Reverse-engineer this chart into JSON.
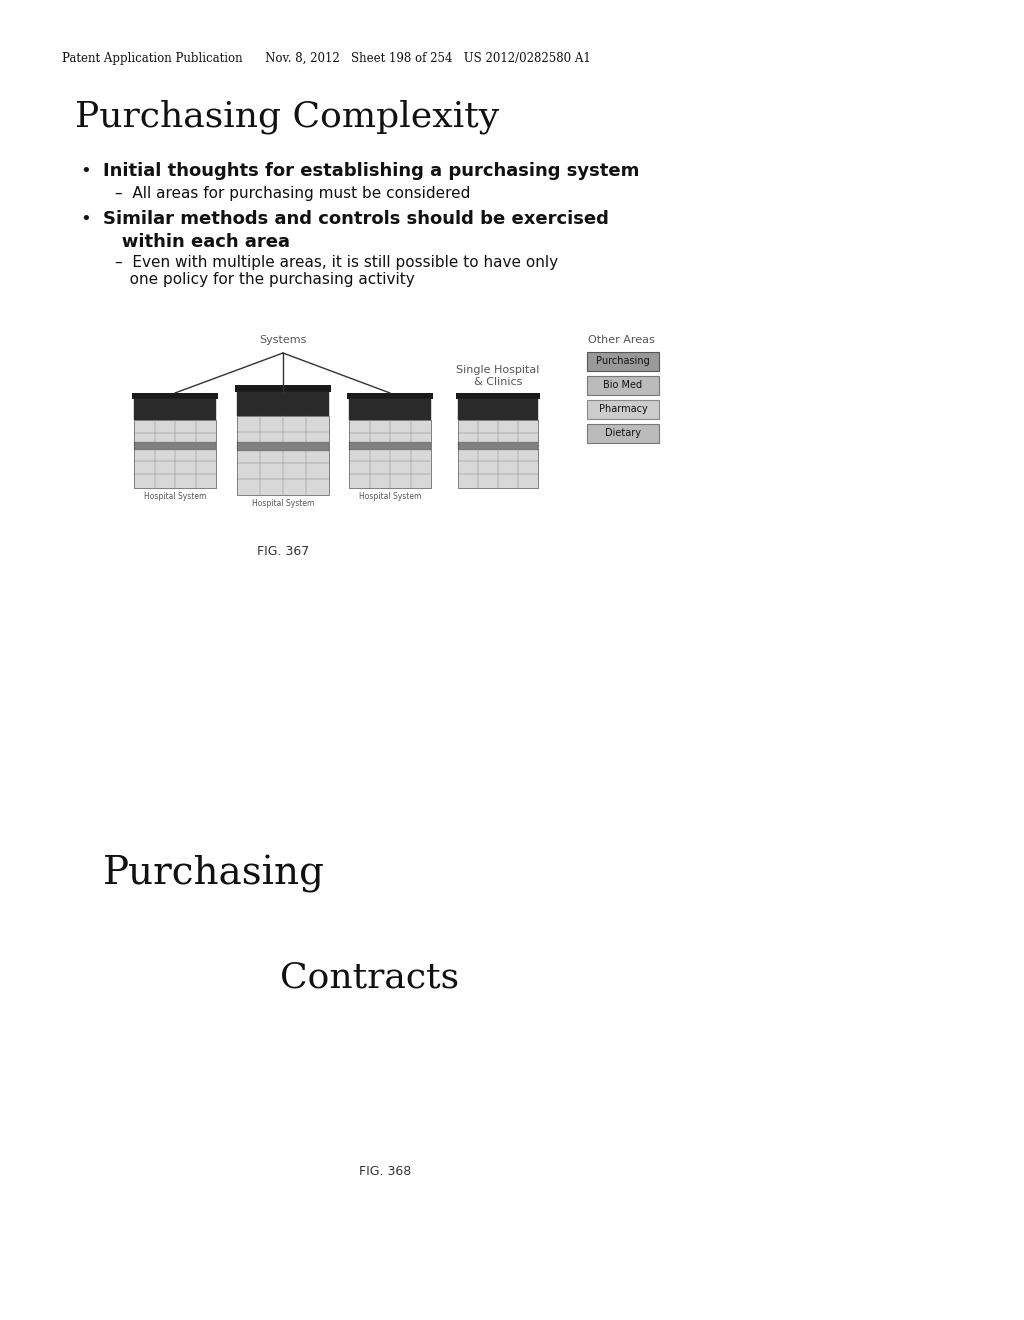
{
  "background_color": "#ffffff",
  "header_text": "Patent Application Publication      Nov. 8, 2012   Sheet 198 of 254   US 2012/0282580 A1",
  "title1": "Purchasing Complexity",
  "bullet1_prefix": "•",
  "bullet1_text": "Initial thoughts for establishing a purchasing system",
  "sub_bullet1": "–  All areas for purchasing must be considered",
  "bullet2_prefix": "•",
  "bullet2_text": "Similar methods and controls should be exercised\n   within each area",
  "sub_bullet2_line1": "–  Even with multiple areas, it is still possible to have only",
  "sub_bullet2_line2": "   one policy for the purchasing activity",
  "fig1_label": "FIG. 367",
  "systems_label": "Systems",
  "single_hosp_label": "Single Hospital\n& Clinics",
  "other_areas_label": "Other Areas",
  "other_areas_boxes": [
    "Purchasing",
    "Bio Med",
    "Pharmacy",
    "Dietary"
  ],
  "hosp_system_label": "Hospital System",
  "title2": "Purchasing",
  "title3": "Contracts",
  "fig2_label": "FIG. 368",
  "header_fontsize": 8.5,
  "title1_fontsize": 26,
  "bullet_fontsize": 13,
  "sub_bullet_fontsize": 11,
  "title2_fontsize": 28,
  "title3_fontsize": 26,
  "fig_label_fontsize": 9
}
